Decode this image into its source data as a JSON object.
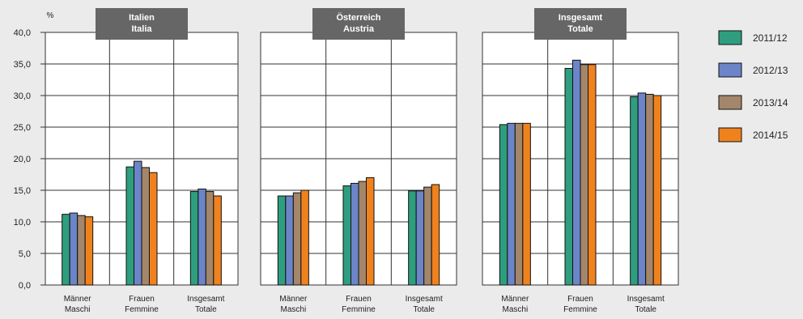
{
  "chart_data": {
    "type": "bar",
    "unit": "%",
    "ylim": [
      0,
      40
    ],
    "yticks": [
      "0,0",
      "5,0",
      "10,0",
      "15,0",
      "20,0",
      "25,0",
      "30,0",
      "35,0",
      "40,0"
    ],
    "grid": "vertical-separators",
    "legend_position": "right",
    "series": [
      {
        "name": "2011/12",
        "color": "#2e9e7e"
      },
      {
        "name": "2012/13",
        "color": "#6b85c8"
      },
      {
        "name": "2013/14",
        "color": "#a4866a"
      },
      {
        "name": "2014/15",
        "color": "#f0821e"
      }
    ],
    "categories": [
      {
        "line1": "Männer",
        "line2": "Maschi"
      },
      {
        "line1": "Frauen",
        "line2": "Femmine"
      },
      {
        "line1": "Insgesamt",
        "line2": "Totale"
      }
    ],
    "panels": [
      {
        "title_line1": "Italien",
        "title_line2": "Italia",
        "values": [
          [
            11.2,
            11.4,
            11.0,
            10.8
          ],
          [
            18.7,
            19.6,
            18.6,
            17.8
          ],
          [
            14.8,
            15.2,
            14.8,
            14.1
          ]
        ]
      },
      {
        "title_line1": "Österreich",
        "title_line2": "Austria",
        "values": [
          [
            14.1,
            14.1,
            14.6,
            15.0
          ],
          [
            15.7,
            16.1,
            16.4,
            17.0
          ],
          [
            14.9,
            14.9,
            15.5,
            15.9
          ]
        ]
      },
      {
        "title_line1": "Insgesamt",
        "title_line2": "Totale",
        "values": [
          [
            25.4,
            25.6,
            25.6,
            25.6
          ],
          [
            34.3,
            35.6,
            34.9,
            34.9
          ],
          [
            29.8,
            30.4,
            30.2,
            30.0
          ]
        ]
      }
    ]
  }
}
